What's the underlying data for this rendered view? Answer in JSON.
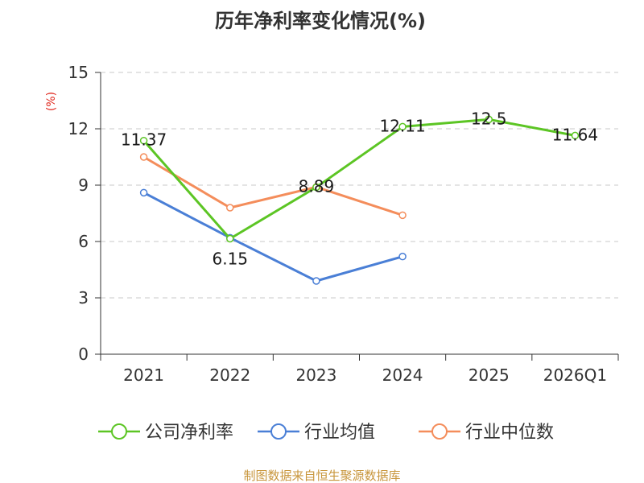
{
  "chart_data": {
    "type": "line",
    "title": "历年净利率变化情况(%)",
    "ylabel": "(%)",
    "categories": [
      "2021",
      "2022",
      "2023",
      "2024",
      "2025",
      "2026Q1"
    ],
    "ylim": [
      0,
      15
    ],
    "yticks": [
      0,
      3,
      6,
      9,
      12,
      15
    ],
    "grid": "horizontal dashed",
    "legend_position": "bottom",
    "series": [
      {
        "name": "公司净利率",
        "color": "#5cc524",
        "values": [
          11.37,
          6.15,
          8.89,
          12.11,
          12.5,
          11.64
        ],
        "labels": [
          "11.37",
          "6.15",
          "8.89",
          "12.11",
          "12.5",
          "11.64"
        ]
      },
      {
        "name": "行业均值",
        "color": "#4a7fd6",
        "values": [
          8.6,
          6.2,
          3.9,
          5.2,
          null,
          null
        ]
      },
      {
        "name": "行业中位数",
        "color": "#f48d5b",
        "values": [
          10.5,
          7.8,
          8.9,
          7.4,
          null,
          null
        ]
      }
    ]
  },
  "footer": {
    "source": "制图数据来自恒生聚源数据库"
  }
}
